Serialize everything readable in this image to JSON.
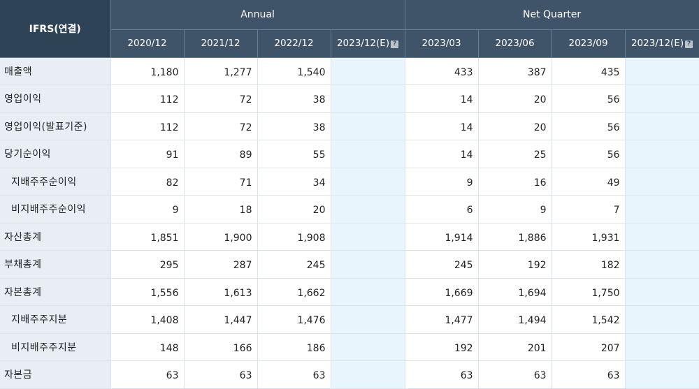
{
  "header": {
    "corner": "IFRS(연결)",
    "annual_label": "Annual",
    "quarter_label": "Net Quarter",
    "annual_cols": [
      "2020/12",
      "2021/12",
      "2022/12",
      "2023/12(E)"
    ],
    "quarter_cols": [
      "2023/03",
      "2023/06",
      "2023/09",
      "2023/12(E)"
    ],
    "estimate_icon": "question-icon"
  },
  "rows": [
    {
      "label": "매출액",
      "indent": false,
      "annual": [
        "1,180",
        "1,277",
        "1,540",
        ""
      ],
      "quarter": [
        "433",
        "387",
        "435",
        ""
      ]
    },
    {
      "label": "영업이익",
      "indent": false,
      "annual": [
        "112",
        "72",
        "38",
        ""
      ],
      "quarter": [
        "14",
        "20",
        "56",
        ""
      ]
    },
    {
      "label": "영업이익(발표기준)",
      "indent": false,
      "annual": [
        "112",
        "72",
        "38",
        ""
      ],
      "quarter": [
        "14",
        "20",
        "56",
        ""
      ]
    },
    {
      "label": "당기순이익",
      "indent": false,
      "annual": [
        "91",
        "89",
        "55",
        ""
      ],
      "quarter": [
        "14",
        "25",
        "56",
        ""
      ]
    },
    {
      "label": "지배주주순이익",
      "indent": true,
      "annual": [
        "82",
        "71",
        "34",
        ""
      ],
      "quarter": [
        "9",
        "16",
        "49",
        ""
      ]
    },
    {
      "label": "비지배주주순이익",
      "indent": true,
      "annual": [
        "9",
        "18",
        "20",
        ""
      ],
      "quarter": [
        "6",
        "9",
        "7",
        ""
      ]
    },
    {
      "label": "자산총계",
      "indent": false,
      "annual": [
        "1,851",
        "1,900",
        "1,908",
        ""
      ],
      "quarter": [
        "1,914",
        "1,886",
        "1,931",
        ""
      ]
    },
    {
      "label": "부채총계",
      "indent": false,
      "annual": [
        "295",
        "287",
        "245",
        ""
      ],
      "quarter": [
        "245",
        "192",
        "182",
        ""
      ]
    },
    {
      "label": "자본총계",
      "indent": false,
      "annual": [
        "1,556",
        "1,613",
        "1,662",
        ""
      ],
      "quarter": [
        "1,669",
        "1,694",
        "1,750",
        ""
      ]
    },
    {
      "label": "지배주주지분",
      "indent": true,
      "annual": [
        "1,408",
        "1,447",
        "1,476",
        ""
      ],
      "quarter": [
        "1,477",
        "1,494",
        "1,542",
        ""
      ]
    },
    {
      "label": "비지배주주지분",
      "indent": true,
      "annual": [
        "148",
        "166",
        "186",
        ""
      ],
      "quarter": [
        "192",
        "201",
        "207",
        ""
      ]
    },
    {
      "label": "자본금",
      "indent": false,
      "annual": [
        "63",
        "63",
        "63",
        ""
      ],
      "quarter": [
        "63",
        "63",
        "63",
        ""
      ]
    }
  ],
  "colors": {
    "header_bg": "#3f5468",
    "corner_bg": "#2f4356",
    "label_bg": "#e8eef4",
    "estimate_bg": "#e8f5fd"
  }
}
